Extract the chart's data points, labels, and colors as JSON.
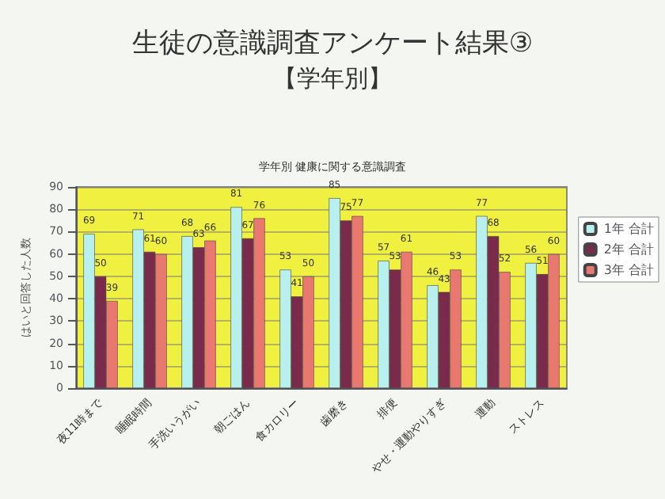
{
  "chart_data": {
    "type": "bar",
    "title": "生徒の意識調査アンケート結果③",
    "subtitle": "【学年別】",
    "annotations": [
      "学年別 健康に関する意識調査"
    ],
    "ylabel": "はいと回答した人数",
    "categories": [
      "夜11時まで",
      "睡眠時間",
      "手洗いうがい",
      "朝ごはん",
      "食カロリー",
      "歯磨き",
      "排便",
      "やせ・運動やりすぎ",
      "運動",
      "ストレス"
    ],
    "series": [
      {
        "name": "1年 合計",
        "color": "#b8f0f0",
        "values": [
          69,
          71,
          68,
          81,
          53,
          85,
          57,
          46,
          77,
          56
        ]
      },
      {
        "name": "2年 合計",
        "color": "#7a2a4a",
        "values": [
          50,
          61,
          63,
          67,
          41,
          75,
          53,
          43,
          68,
          51
        ]
      },
      {
        "name": "3年 合計",
        "color": "#e87870",
        "values": [
          39,
          60,
          66,
          76,
          50,
          77,
          61,
          53,
          52,
          60
        ]
      }
    ],
    "ylim": [
      0,
      90
    ],
    "yticks": [
      0,
      10,
      20,
      30,
      40,
      50,
      60,
      70,
      80,
      90
    ],
    "grid": "y",
    "legend": "right",
    "data_labels": true
  }
}
